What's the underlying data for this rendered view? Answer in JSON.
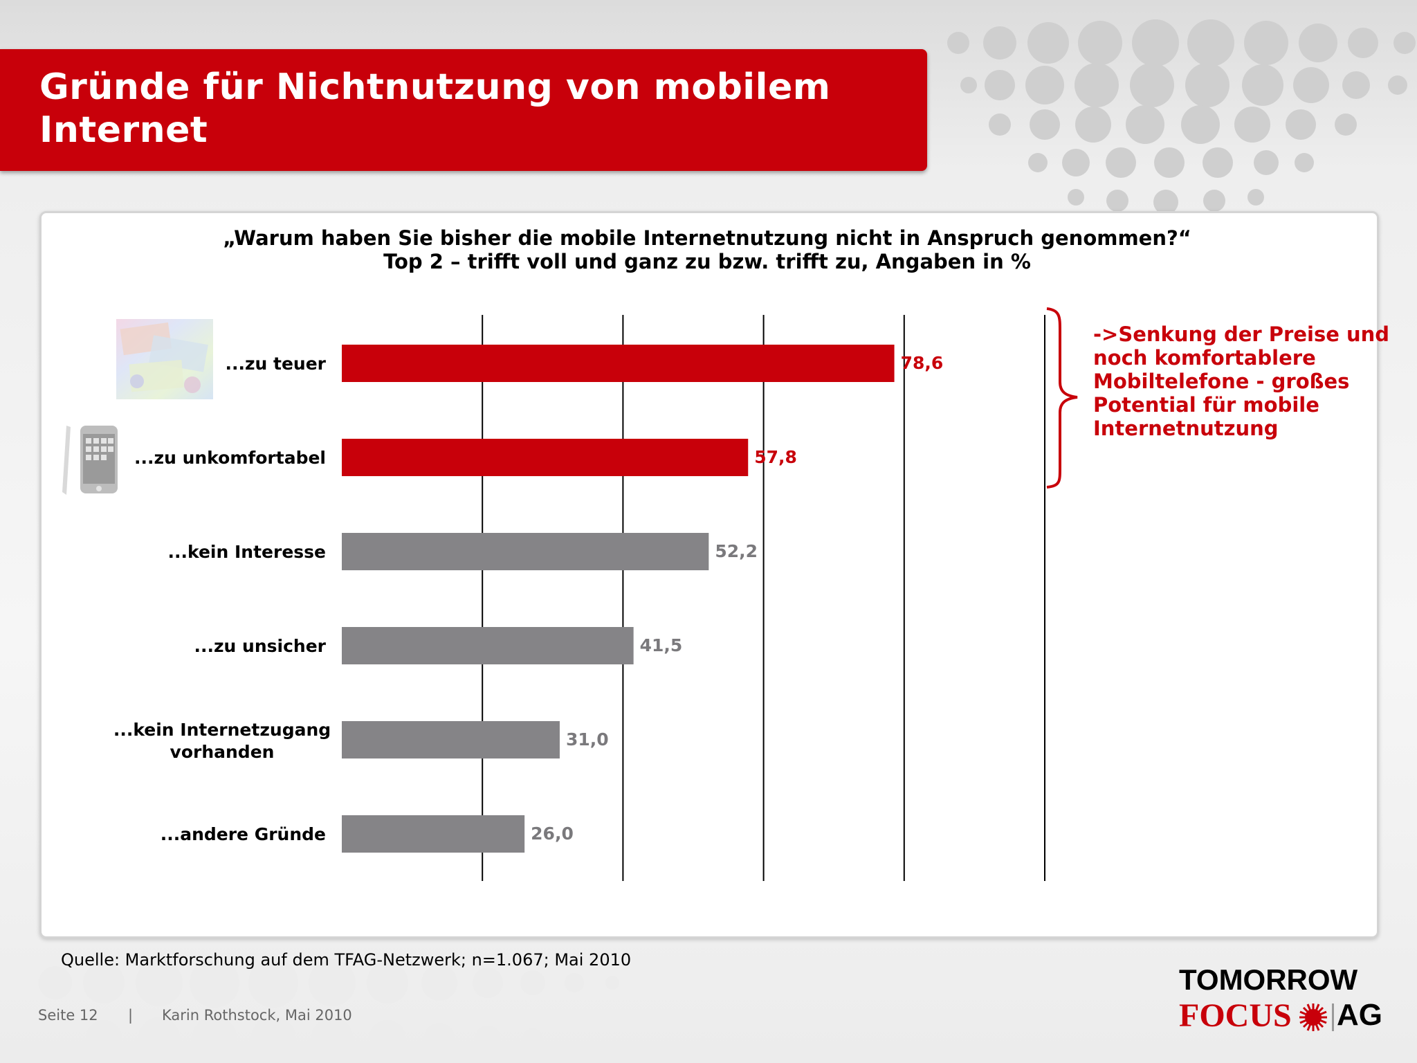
{
  "slide": {
    "title": "Gründe für Nichtnutzung von mobilem Internet",
    "question": "„Warum haben Sie bisher die mobile Internetnutzung nicht in Anspruch genommen?“",
    "subtitle": "Top 2 – trifft voll und ganz zu bzw. trifft zu, Angaben in %",
    "note": "->Senkung der Preise und noch komfortablere Mobiltelefone - großes Potential für mobile Internetnutzung",
    "source": "Quelle: Marktforschung auf dem TFAG-Netzwerk; n=1.067; Mai 2010",
    "page": "Seite 12",
    "separator": "|",
    "author": "Karin Rothstock, Mai 2010"
  },
  "logo": {
    "line1": "TOMORROW",
    "line2": "FOCUS",
    "line3": "AG"
  },
  "chart_data": {
    "type": "bar",
    "orientation": "horizontal",
    "categories": [
      "...zu teuer",
      "...zu unkomfortabel",
      "...kein Interesse",
      "...zu unsicher",
      "...kein Internetzugang vorhanden",
      "...andere Gründe"
    ],
    "values": [
      78.6,
      57.8,
      52.2,
      41.5,
      31.0,
      26.0
    ],
    "value_labels": [
      "78,6",
      "57,8",
      "52,2",
      "41,5",
      "31,0",
      "26,0"
    ],
    "bar_colors": [
      "#c8000a",
      "#c8000a",
      "#858487",
      "#858487",
      "#858487",
      "#858487"
    ],
    "xlim": [
      0,
      100
    ],
    "gridlines": [
      20,
      40,
      60,
      80,
      100
    ],
    "grid": true
  },
  "colors": {
    "accent": "#c8000a",
    "gray_bar": "#858487"
  }
}
